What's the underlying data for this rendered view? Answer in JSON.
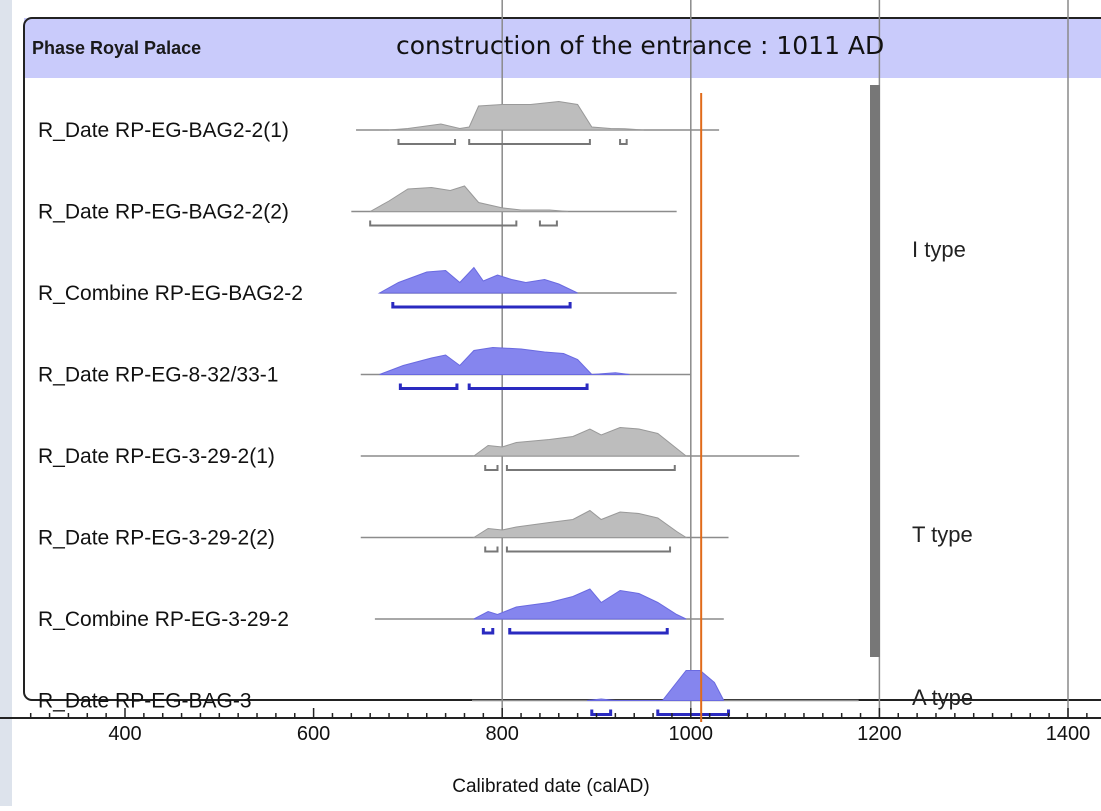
{
  "chart_data": {
    "type": "area",
    "phase_title": "Phase Royal Palace",
    "annotation": "construction of the entrance : 1011 AD",
    "xlabel": "Calibrated date (calAD)",
    "xlim": [
      300,
      1420
    ],
    "x_ticks": [
      400,
      600,
      800,
      1000,
      1200,
      1400
    ],
    "marker_x": 1011,
    "vertical_lines": [
      800,
      1000,
      1200,
      1400
    ],
    "series": [
      {
        "name": "R_Date RP-EG-BAG2-2(1)",
        "kind": "date",
        "range": [
          645,
          1030
        ],
        "density": [
          [
            680,
            0
          ],
          [
            700,
            0.05
          ],
          [
            735,
            0.2
          ],
          [
            755,
            0.05
          ],
          [
            765,
            0.1
          ],
          [
            775,
            0.8
          ],
          [
            800,
            0.85
          ],
          [
            830,
            0.85
          ],
          [
            860,
            0.95
          ],
          [
            880,
            0.85
          ],
          [
            895,
            0.1
          ],
          [
            915,
            0.05
          ],
          [
            930,
            0.04
          ],
          [
            950,
            0
          ]
        ],
        "hpd": [
          [
            690,
            750
          ],
          [
            765,
            893
          ],
          [
            925,
            932
          ]
        ]
      },
      {
        "name": "R_Date RP-EG-BAG2-2(2)",
        "kind": "date",
        "range": [
          640,
          985
        ],
        "density": [
          [
            660,
            0
          ],
          [
            680,
            0.35
          ],
          [
            700,
            0.75
          ],
          [
            725,
            0.8
          ],
          [
            745,
            0.7
          ],
          [
            760,
            0.85
          ],
          [
            775,
            0.3
          ],
          [
            800,
            0.12
          ],
          [
            820,
            0.05
          ],
          [
            850,
            0.05
          ],
          [
            870,
            0
          ]
        ],
        "hpd": [
          [
            660,
            815
          ],
          [
            840,
            858
          ]
        ]
      },
      {
        "name": "R_Combine RP-EG-BAG2-2",
        "kind": "combine",
        "range": [
          670,
          985
        ],
        "density": [
          [
            670,
            0
          ],
          [
            690,
            0.35
          ],
          [
            720,
            0.7
          ],
          [
            740,
            0.75
          ],
          [
            755,
            0.35
          ],
          [
            770,
            0.85
          ],
          [
            780,
            0.4
          ],
          [
            795,
            0.6
          ],
          [
            810,
            0.45
          ],
          [
            825,
            0.35
          ],
          [
            845,
            0.45
          ],
          [
            860,
            0.3
          ],
          [
            880,
            0
          ]
        ],
        "hpd": [
          [
            684,
            872
          ]
        ]
      },
      {
        "name": "R_Date RP-EG-8-32/33-1",
        "kind": "combine",
        "range": [
          650,
          1000
        ],
        "density": [
          [
            670,
            0
          ],
          [
            695,
            0.3
          ],
          [
            725,
            0.55
          ],
          [
            740,
            0.65
          ],
          [
            755,
            0.3
          ],
          [
            770,
            0.8
          ],
          [
            790,
            0.9
          ],
          [
            820,
            0.85
          ],
          [
            845,
            0.75
          ],
          [
            865,
            0.7
          ],
          [
            880,
            0.5
          ],
          [
            895,
            0
          ],
          [
            920,
            0.06
          ],
          [
            935,
            0
          ]
        ],
        "hpd": [
          [
            692,
            752
          ],
          [
            765,
            890
          ]
        ]
      },
      {
        "name": "R_Date RP-EG-3-29-2(1)",
        "kind": "date",
        "range": [
          650,
          1115
        ],
        "density": [
          [
            770,
            0
          ],
          [
            785,
            0.35
          ],
          [
            800,
            0.3
          ],
          [
            815,
            0.45
          ],
          [
            850,
            0.55
          ],
          [
            875,
            0.65
          ],
          [
            893,
            0.9
          ],
          [
            905,
            0.7
          ],
          [
            925,
            0.95
          ],
          [
            945,
            0.9
          ],
          [
            965,
            0.75
          ],
          [
            985,
            0.25
          ],
          [
            995,
            0
          ]
        ],
        "hpd": [
          [
            782,
            795
          ],
          [
            805,
            983
          ]
        ]
      },
      {
        "name": "R_Date RP-EG-3-29-2(2)",
        "kind": "date",
        "range": [
          650,
          1040
        ],
        "density": [
          [
            770,
            0
          ],
          [
            785,
            0.3
          ],
          [
            800,
            0.25
          ],
          [
            815,
            0.35
          ],
          [
            850,
            0.5
          ],
          [
            875,
            0.6
          ],
          [
            893,
            0.9
          ],
          [
            905,
            0.6
          ],
          [
            925,
            0.85
          ],
          [
            945,
            0.8
          ],
          [
            965,
            0.65
          ],
          [
            985,
            0.2
          ],
          [
            995,
            0
          ]
        ],
        "hpd": [
          [
            782,
            795
          ],
          [
            805,
            978
          ]
        ]
      },
      {
        "name": "R_Combine RP-EG-3-29-2",
        "kind": "combine",
        "range": [
          665,
          1035
        ],
        "density": [
          [
            770,
            0
          ],
          [
            785,
            0.25
          ],
          [
            795,
            0.15
          ],
          [
            815,
            0.4
          ],
          [
            850,
            0.55
          ],
          [
            875,
            0.75
          ],
          [
            893,
            1
          ],
          [
            905,
            0.55
          ],
          [
            925,
            0.95
          ],
          [
            945,
            0.85
          ],
          [
            965,
            0.55
          ],
          [
            985,
            0.15
          ],
          [
            995,
            0
          ]
        ],
        "hpd": [
          [
            780,
            790
          ],
          [
            808,
            975
          ]
        ]
      },
      {
        "name": "R_Date RP-EG-BAG-3",
        "kind": "combine",
        "range": [
          768,
          1178
        ],
        "density": [
          [
            890,
            0
          ],
          [
            905,
            0.05
          ],
          [
            920,
            0
          ],
          [
            970,
            0
          ],
          [
            980,
            0.4
          ],
          [
            995,
            1
          ],
          [
            1010,
            1
          ],
          [
            1025,
            0.6
          ],
          [
            1035,
            0
          ]
        ],
        "hpd": [
          [
            895,
            915
          ],
          [
            965,
            1040
          ]
        ]
      }
    ],
    "groups": [
      {
        "label": "I type",
        "from": 0,
        "to": 3
      },
      {
        "label": "T type",
        "from": 4,
        "to": 6
      },
      {
        "label": "A type",
        "from": 7,
        "to": 7
      }
    ],
    "colors": {
      "date_fill": "#bdbdbd",
      "date_edge": "#999999",
      "combine_fill": "#8585ee",
      "combine_edge": "#6a6ae0",
      "hpd_date": "#777777",
      "hpd_combine": "#2a2ac0",
      "header_fill": "#c9cbfb",
      "marker": "#e06b1a",
      "bar": "#777777"
    }
  }
}
